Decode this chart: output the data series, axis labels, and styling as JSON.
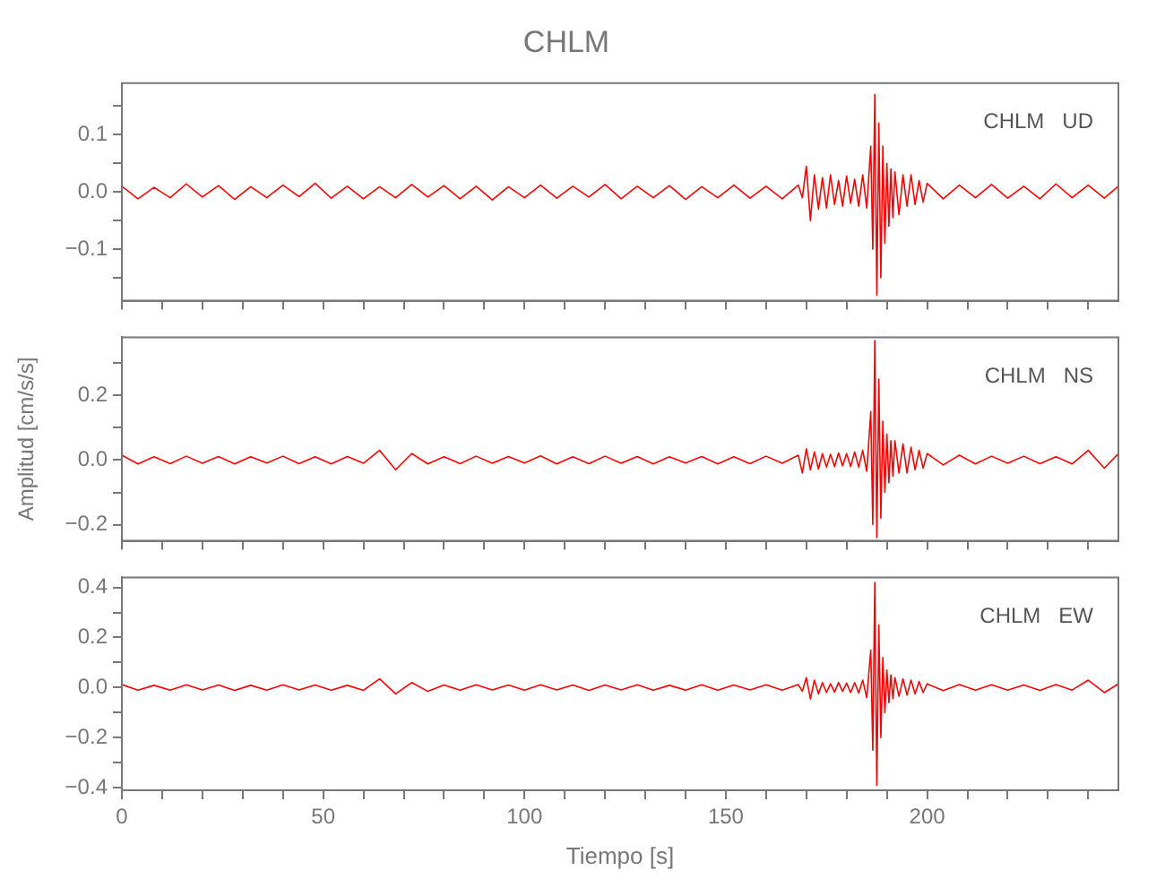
{
  "chart_data": [
    {
      "type": "line",
      "title": "CHLM",
      "annotations": [
        "CHLM   UD"
      ],
      "legend": false,
      "tick_labels": "y",
      "xlim": [
        0,
        247.5
      ],
      "xticks": [
        {
          "value": 0,
          "label": null
        },
        {
          "value": 10,
          "label": null
        },
        {
          "value": 20,
          "label": null
        },
        {
          "value": 30,
          "label": null
        },
        {
          "value": 40,
          "label": null
        },
        {
          "value": 50,
          "label": null
        },
        {
          "value": 60,
          "label": null
        },
        {
          "value": 70,
          "label": null
        },
        {
          "value": 80,
          "label": null
        },
        {
          "value": 90,
          "label": null
        },
        {
          "value": 100,
          "label": null
        },
        {
          "value": 110,
          "label": null
        },
        {
          "value": 120,
          "label": null
        },
        {
          "value": 130,
          "label": null
        },
        {
          "value": 140,
          "label": null
        },
        {
          "value": 150,
          "label": null
        },
        {
          "value": 160,
          "label": null
        },
        {
          "value": 170,
          "label": null
        },
        {
          "value": 180,
          "label": null
        },
        {
          "value": 190,
          "label": null
        },
        {
          "value": 200,
          "label": null
        },
        {
          "value": 210,
          "label": null
        },
        {
          "value": 220,
          "label": null
        },
        {
          "value": 230,
          "label": null
        },
        {
          "value": 240,
          "label": null
        }
      ],
      "ylim": [
        -0.19,
        0.19
      ],
      "yticks": [
        {
          "value": -0.15,
          "label": null
        },
        {
          "value": -0.1,
          "label": "−0.1"
        },
        {
          "value": -0.05,
          "label": null
        },
        {
          "value": 0,
          "label": "0.0"
        },
        {
          "value": 0.05,
          "label": null
        },
        {
          "value": 0.1,
          "label": "0.1"
        },
        {
          "value": 0.15,
          "label": null
        }
      ],
      "x": [
        0,
        4,
        8,
        12,
        16,
        20,
        24,
        28,
        32,
        36,
        40,
        44,
        48,
        52,
        56,
        60,
        64,
        68,
        72,
        76,
        80,
        84,
        88,
        92,
        96,
        100,
        104,
        108,
        112,
        116,
        120,
        124,
        128,
        132,
        136,
        140,
        144,
        148,
        152,
        156,
        160,
        164,
        168,
        169,
        170,
        171,
        172,
        173,
        174,
        175,
        176,
        177,
        178,
        179,
        180,
        181,
        182,
        183,
        184,
        185,
        186,
        186.5,
        187,
        187.5,
        188,
        188.5,
        189,
        189.5,
        190,
        190.5,
        191,
        191.5,
        192,
        193,
        194,
        195,
        196,
        197,
        198,
        199,
        200,
        204,
        208,
        212,
        216,
        220,
        224,
        228,
        232,
        236,
        240,
        244,
        247.5
      ],
      "series": [
        {
          "color": "#ff0000",
          "values": [
            0.01,
            -0.012,
            0.008,
            -0.01,
            0.014,
            -0.009,
            0.011,
            -0.013,
            0.009,
            -0.01,
            0.012,
            -0.008,
            0.015,
            -0.011,
            0.01,
            -0.012,
            0.009,
            -0.01,
            0.013,
            -0.009,
            0.011,
            -0.012,
            0.01,
            -0.014,
            0.009,
            -0.01,
            0.012,
            -0.011,
            0.01,
            -0.009,
            0.013,
            -0.012,
            0.01,
            -0.01,
            0.011,
            -0.013,
            0.009,
            -0.01,
            0.012,
            -0.011,
            0.01,
            -0.012,
            0.012,
            -0.01,
            0.045,
            -0.05,
            0.03,
            -0.03,
            0.025,
            -0.028,
            0.03,
            -0.022,
            0.02,
            -0.025,
            0.028,
            -0.02,
            0.022,
            -0.025,
            0.03,
            -0.028,
            0.08,
            -0.1,
            0.17,
            -0.18,
            0.12,
            -0.15,
            0.08,
            -0.09,
            0.05,
            -0.06,
            0.04,
            -0.045,
            0.035,
            -0.04,
            0.03,
            -0.025,
            0.03,
            -0.022,
            0.02,
            -0.018,
            0.015,
            -0.012,
            0.012,
            -0.01,
            0.013,
            -0.011,
            0.01,
            -0.012,
            0.014,
            -0.01,
            0.012,
            -0.011,
            0.01
          ]
        }
      ]
    },
    {
      "type": "line",
      "ylabel": "Amplitud [cm/s/s]",
      "annotations": [
        "CHLM   NS"
      ],
      "legend": false,
      "tick_labels": "y",
      "xlim": [
        0,
        247.5
      ],
      "xticks": [
        {
          "value": 0,
          "label": null
        },
        {
          "value": 10,
          "label": null
        },
        {
          "value": 20,
          "label": null
        },
        {
          "value": 30,
          "label": null
        },
        {
          "value": 40,
          "label": null
        },
        {
          "value": 50,
          "label": null
        },
        {
          "value": 60,
          "label": null
        },
        {
          "value": 70,
          "label": null
        },
        {
          "value": 80,
          "label": null
        },
        {
          "value": 90,
          "label": null
        },
        {
          "value": 100,
          "label": null
        },
        {
          "value": 110,
          "label": null
        },
        {
          "value": 120,
          "label": null
        },
        {
          "value": 130,
          "label": null
        },
        {
          "value": 140,
          "label": null
        },
        {
          "value": 150,
          "label": null
        },
        {
          "value": 160,
          "label": null
        },
        {
          "value": 170,
          "label": null
        },
        {
          "value": 180,
          "label": null
        },
        {
          "value": 190,
          "label": null
        },
        {
          "value": 200,
          "label": null
        },
        {
          "value": 210,
          "label": null
        },
        {
          "value": 220,
          "label": null
        },
        {
          "value": 230,
          "label": null
        },
        {
          "value": 240,
          "label": null
        }
      ],
      "ylim": [
        -0.25,
        0.38
      ],
      "yticks": [
        {
          "value": -0.2,
          "label": "−0.2"
        },
        {
          "value": -0.1,
          "label": null
        },
        {
          "value": 0,
          "label": "0.0"
        },
        {
          "value": 0.1,
          "label": null
        },
        {
          "value": 0.2,
          "label": "0.2"
        },
        {
          "value": 0.3,
          "label": null
        }
      ],
      "x": [
        0,
        4,
        8,
        12,
        16,
        20,
        24,
        28,
        32,
        36,
        40,
        44,
        48,
        52,
        56,
        60,
        64,
        68,
        72,
        76,
        80,
        84,
        88,
        92,
        96,
        100,
        104,
        108,
        112,
        116,
        120,
        124,
        128,
        132,
        136,
        140,
        144,
        148,
        152,
        156,
        160,
        164,
        168,
        169,
        170,
        171,
        172,
        173,
        174,
        175,
        176,
        177,
        178,
        179,
        180,
        181,
        182,
        183,
        184,
        185,
        186,
        186.5,
        187,
        187.5,
        188,
        188.5,
        189,
        189.5,
        190,
        190.5,
        191,
        191.5,
        192,
        193,
        194,
        195,
        196,
        197,
        198,
        199,
        200,
        204,
        208,
        212,
        216,
        220,
        224,
        228,
        232,
        236,
        240,
        244,
        247.5
      ],
      "series": [
        {
          "color": "#ff0000",
          "values": [
            0.015,
            -0.012,
            0.01,
            -0.011,
            0.012,
            -0.01,
            0.011,
            -0.012,
            0.01,
            -0.009,
            0.012,
            -0.011,
            0.01,
            -0.012,
            0.011,
            -0.01,
            0.03,
            -0.03,
            0.02,
            -0.012,
            0.01,
            -0.011,
            0.012,
            -0.01,
            0.011,
            -0.009,
            0.013,
            -0.012,
            0.01,
            -0.011,
            0.012,
            -0.01,
            0.011,
            -0.012,
            0.01,
            -0.009,
            0.011,
            -0.012,
            0.01,
            -0.011,
            0.012,
            -0.01,
            0.015,
            -0.04,
            0.035,
            -0.03,
            0.025,
            -0.028,
            0.02,
            -0.022,
            0.018,
            -0.02,
            0.022,
            -0.018,
            0.02,
            -0.02,
            0.025,
            -0.022,
            0.03,
            -0.035,
            0.15,
            -0.2,
            0.37,
            -0.24,
            0.25,
            -0.18,
            0.12,
            -0.1,
            0.08,
            -0.07,
            0.06,
            -0.05,
            0.06,
            -0.04,
            0.05,
            -0.04,
            0.04,
            -0.03,
            0.03,
            -0.025,
            0.02,
            -0.015,
            0.015,
            -0.012,
            0.012,
            -0.01,
            0.012,
            -0.011,
            0.01,
            -0.012,
            0.03,
            -0.025,
            0.02
          ]
        }
      ]
    },
    {
      "type": "line",
      "xlabel": "Tiempo [s]",
      "annotations": [
        "CHLM   EW"
      ],
      "legend": false,
      "xlim": [
        0,
        247.5
      ],
      "xticks": [
        {
          "value": 0,
          "label": "0"
        },
        {
          "value": 10,
          "label": null
        },
        {
          "value": 20,
          "label": null
        },
        {
          "value": 30,
          "label": null
        },
        {
          "value": 40,
          "label": null
        },
        {
          "value": 50,
          "label": "50"
        },
        {
          "value": 60,
          "label": null
        },
        {
          "value": 70,
          "label": null
        },
        {
          "value": 80,
          "label": null
        },
        {
          "value": 90,
          "label": null
        },
        {
          "value": 100,
          "label": "100"
        },
        {
          "value": 110,
          "label": null
        },
        {
          "value": 120,
          "label": null
        },
        {
          "value": 130,
          "label": null
        },
        {
          "value": 140,
          "label": null
        },
        {
          "value": 150,
          "label": "150"
        },
        {
          "value": 160,
          "label": null
        },
        {
          "value": 170,
          "label": null
        },
        {
          "value": 180,
          "label": null
        },
        {
          "value": 190,
          "label": null
        },
        {
          "value": 200,
          "label": "200"
        },
        {
          "value": 210,
          "label": null
        },
        {
          "value": 220,
          "label": null
        },
        {
          "value": 230,
          "label": null
        },
        {
          "value": 240,
          "label": null
        }
      ],
      "ylim": [
        -0.41,
        0.44
      ],
      "yticks": [
        {
          "value": -0.4,
          "label": "−0.4"
        },
        {
          "value": -0.3,
          "label": null
        },
        {
          "value": -0.2,
          "label": "−0.2"
        },
        {
          "value": -0.1,
          "label": null
        },
        {
          "value": 0,
          "label": "0.0"
        },
        {
          "value": 0.1,
          "label": null
        },
        {
          "value": 0.2,
          "label": "0.2"
        },
        {
          "value": 0.3,
          "label": null
        },
        {
          "value": 0.4,
          "label": "0.4"
        }
      ],
      "x": [
        0,
        4,
        8,
        12,
        16,
        20,
        24,
        28,
        32,
        36,
        40,
        44,
        48,
        52,
        56,
        60,
        64,
        68,
        72,
        76,
        80,
        84,
        88,
        92,
        96,
        100,
        104,
        108,
        112,
        116,
        120,
        124,
        128,
        132,
        136,
        140,
        144,
        148,
        152,
        156,
        160,
        164,
        168,
        169,
        170,
        171,
        172,
        173,
        174,
        175,
        176,
        177,
        178,
        179,
        180,
        181,
        182,
        183,
        184,
        185,
        186,
        186.5,
        187,
        187.5,
        188,
        188.5,
        189,
        189.5,
        190,
        190.5,
        191,
        191.5,
        192,
        193,
        194,
        195,
        196,
        197,
        198,
        199,
        200,
        204,
        208,
        212,
        216,
        220,
        224,
        228,
        232,
        236,
        240,
        244,
        247.5
      ],
      "series": [
        {
          "color": "#ff0000",
          "values": [
            0.012,
            -0.01,
            0.009,
            -0.01,
            0.011,
            -0.009,
            0.01,
            -0.011,
            0.009,
            -0.01,
            0.011,
            -0.009,
            0.01,
            -0.01,
            0.009,
            -0.011,
            0.035,
            -0.025,
            0.02,
            -0.015,
            0.01,
            -0.01,
            0.011,
            -0.009,
            0.01,
            -0.01,
            0.011,
            -0.009,
            0.01,
            -0.011,
            0.01,
            -0.009,
            0.011,
            -0.01,
            0.009,
            -0.01,
            0.011,
            -0.01,
            0.01,
            -0.009,
            0.011,
            -0.01,
            0.012,
            -0.015,
            0.04,
            -0.045,
            0.03,
            -0.025,
            0.02,
            -0.02,
            0.015,
            -0.018,
            0.02,
            -0.015,
            0.018,
            -0.02,
            0.02,
            -0.022,
            0.03,
            -0.04,
            0.15,
            -0.25,
            0.42,
            -0.39,
            0.25,
            -0.2,
            0.12,
            -0.1,
            0.07,
            -0.06,
            0.05,
            -0.045,
            0.04,
            -0.035,
            0.035,
            -0.03,
            0.03,
            -0.025,
            0.025,
            -0.02,
            0.015,
            -0.012,
            0.012,
            -0.01,
            0.011,
            -0.01,
            0.01,
            -0.011,
            0.012,
            -0.01,
            0.03,
            -0.02,
            0.015
          ]
        }
      ]
    }
  ]
}
